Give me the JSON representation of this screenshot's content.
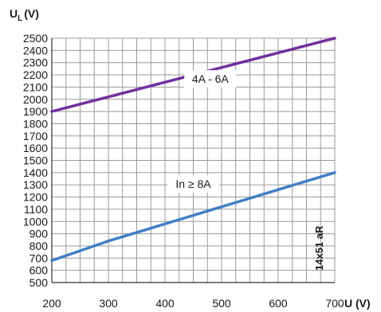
{
  "chart_data": {
    "type": "line",
    "ylabel_main": "U",
    "ylabel_sub": "L",
    "ylabel_unit": "(V)",
    "xlabel": "U (V)",
    "xlim": [
      200,
      700
    ],
    "ylim": [
      500,
      2500
    ],
    "xticks": [
      "200",
      "300",
      "400",
      "500",
      "600",
      "700"
    ],
    "yticks": [
      "500",
      "600",
      "700",
      "800",
      "900",
      "1000",
      "1100",
      "1200",
      "1300",
      "1400",
      "1500",
      "1600",
      "1700",
      "1800",
      "1900",
      "2000",
      "2100",
      "2200",
      "2300",
      "2400",
      "2500"
    ],
    "grid": true,
    "side_label": "14x51 aR",
    "series": [
      {
        "name": "4A - 6A",
        "color": "#7030a0",
        "x": [
          200,
          700
        ],
        "y": [
          1900,
          2500
        ],
        "label_at": [
          480,
          2160
        ]
      },
      {
        "name": "In ≥ 8A",
        "color": "#3f7fc6",
        "x": [
          200,
          300,
          700
        ],
        "y": [
          680,
          840,
          1400
        ],
        "label_at": [
          450,
          1300
        ]
      }
    ]
  }
}
